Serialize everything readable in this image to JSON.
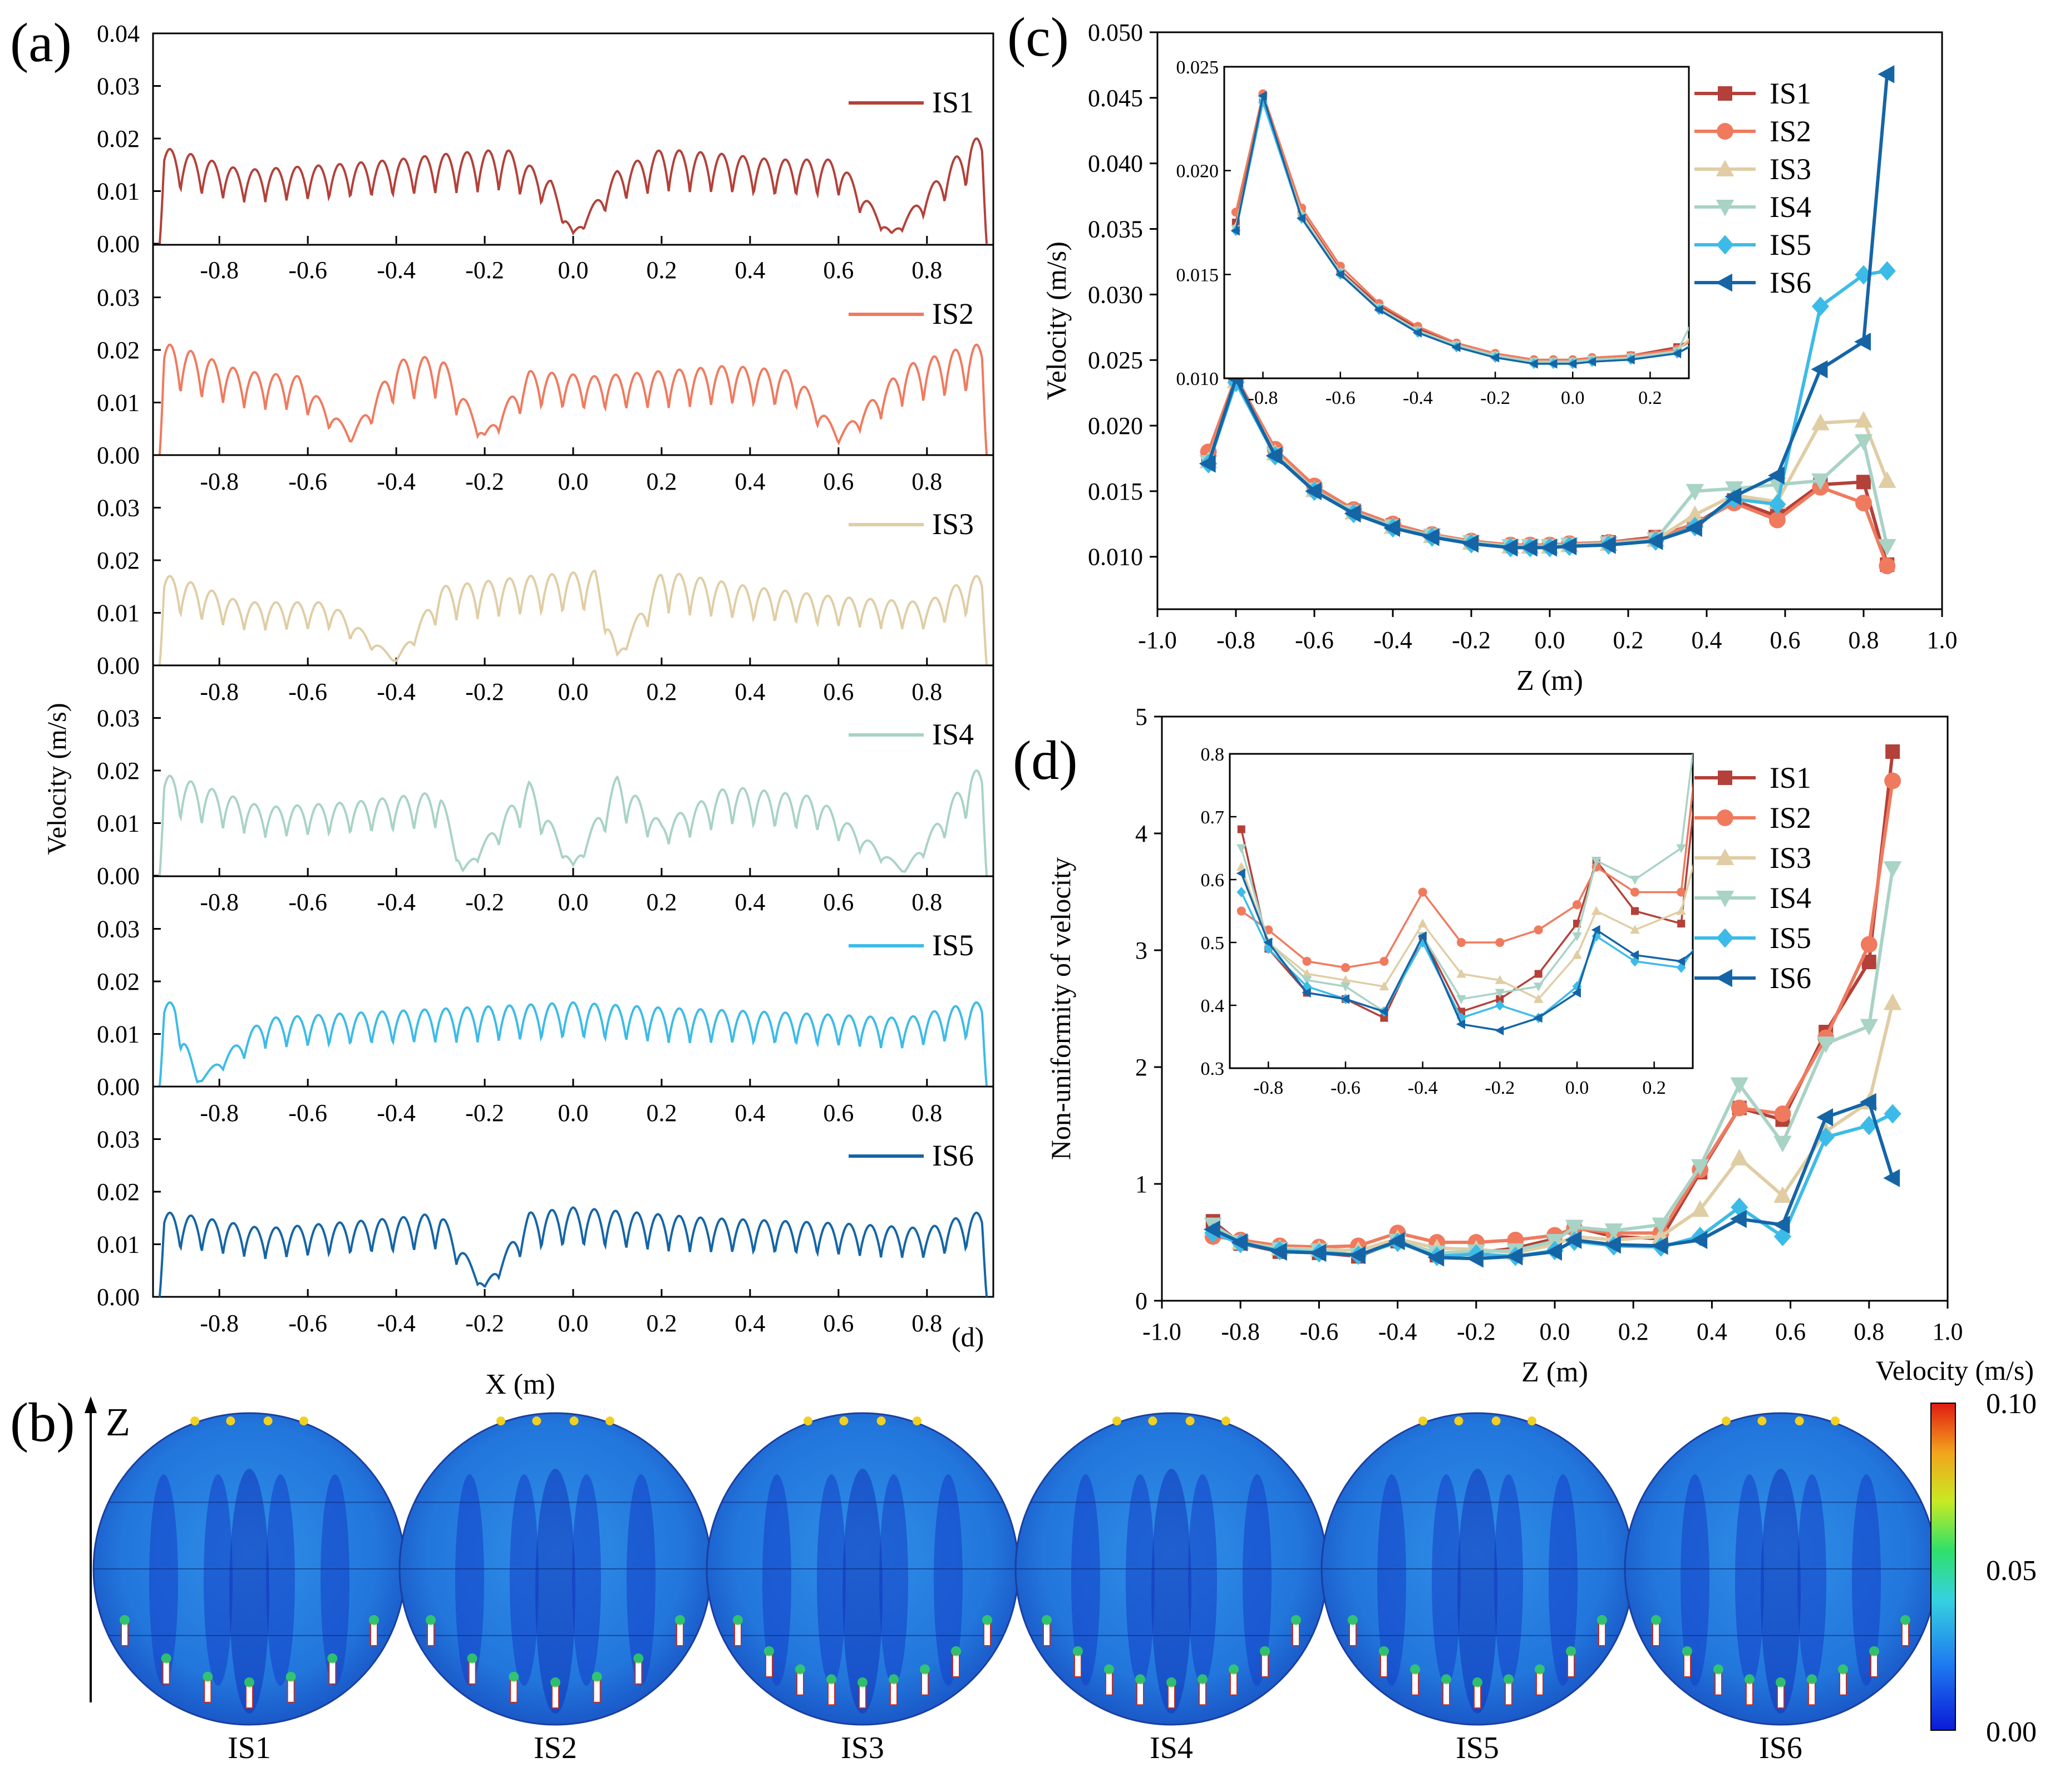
{
  "panel_labels": {
    "a": "(a)",
    "b": "(b)",
    "c": "(c)",
    "d": "(d)"
  },
  "colors": {
    "IS1": "#b3413a",
    "IS2": "#f07a5e",
    "IS3": "#e0cda4",
    "IS4": "#a8d3c5",
    "IS5": "#3dbbe8",
    "IS6": "#1565a6"
  },
  "panel_a": {
    "ylabel": "Velocity (m/s)",
    "xlabel": "X (m)",
    "stray_label": "(d)"
  },
  "panel_b": {
    "axis_label": "Z",
    "colorbar_title": "Velocity (m/s)",
    "colorbar_ticks": [
      "0.10",
      "0.05",
      "0.00"
    ],
    "case_labels": [
      "IS1",
      "IS2",
      "IS3",
      "IS4",
      "IS5",
      "IS6"
    ]
  },
  "chart_data": [
    {
      "id": "a",
      "type": "line",
      "title": "",
      "xlabel": "X (m)",
      "ylabel": "Velocity (m/s)",
      "xlim": [
        -0.95,
        0.95
      ],
      "ylim": [
        0,
        0.04
      ],
      "xticks": [
        "-0.8",
        "-0.6",
        "-0.4",
        "-0.2",
        "0.0",
        "0.2",
        "0.4",
        "0.6",
        "0.8"
      ],
      "yticks": [
        "0.00",
        "0.01",
        "0.02",
        "0.03",
        "0.04"
      ],
      "series": [
        {
          "name": "IS1",
          "peaks": [
            [
              -0.9,
              0.018
            ],
            [
              -0.75,
              0.014
            ],
            [
              -0.55,
              0.015
            ],
            [
              -0.4,
              0.016
            ],
            [
              -0.3,
              0.017
            ],
            [
              -0.15,
              0.018
            ],
            [
              -0.05,
              0.012
            ],
            [
              0.0,
              0.002
            ],
            [
              0.1,
              0.014
            ],
            [
              0.2,
              0.018
            ],
            [
              0.35,
              0.017
            ],
            [
              0.45,
              0.016
            ],
            [
              0.6,
              0.016
            ],
            [
              0.72,
              0.002
            ],
            [
              0.9,
              0.02
            ]
          ]
        },
        {
          "name": "IS2",
          "peaks": [
            [
              -0.9,
              0.021
            ],
            [
              -0.75,
              0.016
            ],
            [
              -0.62,
              0.015
            ],
            [
              -0.5,
              0.004
            ],
            [
              -0.4,
              0.018
            ],
            [
              -0.3,
              0.019
            ],
            [
              -0.2,
              0.004
            ],
            [
              -0.1,
              0.016
            ],
            [
              0.05,
              0.015
            ],
            [
              0.2,
              0.016
            ],
            [
              0.35,
              0.017
            ],
            [
              0.5,
              0.016
            ],
            [
              0.6,
              0.004
            ],
            [
              0.75,
              0.017
            ],
            [
              0.9,
              0.021
            ]
          ]
        },
        {
          "name": "IS3",
          "peaks": [
            [
              -0.9,
              0.017
            ],
            [
              -0.75,
              0.012
            ],
            [
              -0.55,
              0.012
            ],
            [
              -0.4,
              0.001
            ],
            [
              -0.3,
              0.015
            ],
            [
              -0.1,
              0.017
            ],
            [
              0.05,
              0.018
            ],
            [
              0.1,
              0.002
            ],
            [
              0.2,
              0.018
            ],
            [
              0.4,
              0.015
            ],
            [
              0.6,
              0.013
            ],
            [
              0.8,
              0.012
            ],
            [
              0.9,
              0.017
            ]
          ]
        },
        {
          "name": "IS4",
          "peaks": [
            [
              -0.9,
              0.019
            ],
            [
              -0.7,
              0.013
            ],
            [
              -0.5,
              0.014
            ],
            [
              -0.3,
              0.016
            ],
            [
              -0.25,
              0.001
            ],
            [
              -0.1,
              0.018
            ],
            [
              0.0,
              0.002
            ],
            [
              0.1,
              0.019
            ],
            [
              0.2,
              0.01
            ],
            [
              0.35,
              0.017
            ],
            [
              0.55,
              0.015
            ],
            [
              0.75,
              0.001
            ],
            [
              0.9,
              0.02
            ]
          ]
        },
        {
          "name": "IS5",
          "peaks": [
            [
              -0.9,
              0.016
            ],
            [
              -0.85,
              0.001
            ],
            [
              -0.7,
              0.013
            ],
            [
              -0.5,
              0.014
            ],
            [
              -0.25,
              0.015
            ],
            [
              0.0,
              0.016
            ],
            [
              0.2,
              0.015
            ],
            [
              0.5,
              0.014
            ],
            [
              0.75,
              0.013
            ],
            [
              0.9,
              0.016
            ]
          ]
        },
        {
          "name": "IS6",
          "peaks": [
            [
              -0.9,
              0.016
            ],
            [
              -0.7,
              0.013
            ],
            [
              -0.4,
              0.015
            ],
            [
              -0.3,
              0.016
            ],
            [
              -0.2,
              0.002
            ],
            [
              -0.1,
              0.016
            ],
            [
              0.0,
              0.017
            ],
            [
              0.3,
              0.015
            ],
            [
              0.6,
              0.014
            ],
            [
              0.8,
              0.013
            ],
            [
              0.9,
              0.016
            ]
          ]
        }
      ]
    },
    {
      "id": "c",
      "type": "line",
      "title": "",
      "xlabel": "Z (m)",
      "ylabel": "Velocity (m/s)",
      "xlim": [
        -1.0,
        1.0
      ],
      "ylim": [
        0.006,
        0.05
      ],
      "xticks": [
        "-1.0",
        "-0.8",
        "-0.6",
        "-0.4",
        "-0.2",
        "0.0",
        "0.2",
        "0.4",
        "0.6",
        "0.8",
        "1.0"
      ],
      "yticks": [
        "0.010",
        "0.015",
        "0.020",
        "0.025",
        "0.030",
        "0.035",
        "0.040",
        "0.045",
        "0.050"
      ],
      "legend": "top-right",
      "x": [
        -0.87,
        -0.8,
        -0.7,
        -0.6,
        -0.5,
        -0.4,
        -0.3,
        -0.2,
        -0.1,
        -0.05,
        0.0,
        0.05,
        0.15,
        0.27,
        0.37,
        0.47,
        0.58,
        0.69,
        0.8,
        0.86
      ],
      "series": [
        {
          "name": "IS1",
          "values": [
            0.0175,
            0.0235,
            0.018,
            0.0152,
            0.0135,
            0.0124,
            0.0116,
            0.0111,
            0.0108,
            0.0108,
            0.0108,
            0.0109,
            0.0111,
            0.0115,
            0.0125,
            0.0143,
            0.0131,
            0.0155,
            0.0157,
            0.0094
          ]
        },
        {
          "name": "IS2",
          "values": [
            0.018,
            0.0237,
            0.0182,
            0.0154,
            0.0136,
            0.0125,
            0.0117,
            0.0112,
            0.0109,
            0.0109,
            0.0109,
            0.011,
            0.0111,
            0.0114,
            0.0125,
            0.0141,
            0.0128,
            0.0153,
            0.0141,
            0.0093
          ]
        },
        {
          "name": "IS3",
          "values": [
            0.0173,
            0.0234,
            0.0179,
            0.0151,
            0.0134,
            0.0123,
            0.0116,
            0.0111,
            0.0108,
            0.0108,
            0.0108,
            0.0109,
            0.011,
            0.0113,
            0.0132,
            0.0147,
            0.0142,
            0.0202,
            0.0204,
            0.0158
          ]
        },
        {
          "name": "IS4",
          "values": [
            0.0172,
            0.0234,
            0.0178,
            0.0151,
            0.0134,
            0.0123,
            0.0116,
            0.0111,
            0.0108,
            0.0108,
            0.0108,
            0.0109,
            0.011,
            0.0113,
            0.015,
            0.0152,
            0.0155,
            0.0158,
            0.0188,
            0.0108
          ]
        },
        {
          "name": "IS5",
          "values": [
            0.0171,
            0.0233,
            0.0177,
            0.015,
            0.0133,
            0.0122,
            0.0115,
            0.011,
            0.0107,
            0.0107,
            0.0107,
            0.0108,
            0.0109,
            0.0112,
            0.0123,
            0.0144,
            0.014,
            0.0291,
            0.0315,
            0.0318
          ]
        },
        {
          "name": "IS6",
          "values": [
            0.0171,
            0.0236,
            0.0177,
            0.015,
            0.0133,
            0.0122,
            0.0115,
            0.011,
            0.0107,
            0.0107,
            0.0107,
            0.0108,
            0.0109,
            0.0112,
            0.0122,
            0.0146,
            0.0162,
            0.0243,
            0.0264,
            0.0468
          ]
        }
      ],
      "inset": {
        "xlim": [
          -0.9,
          0.3
        ],
        "ylim": [
          0.01,
          0.025
        ],
        "xticks": [
          "-0.8",
          "-0.6",
          "-0.4",
          "-0.2",
          "0.0",
          "0.2"
        ],
        "yticks": [
          "0.010",
          "0.015",
          "0.020",
          "0.025"
        ]
      }
    },
    {
      "id": "d",
      "type": "line",
      "title": "",
      "xlabel": "Z (m)",
      "ylabel": "Non-uniformity of velocity",
      "xlim": [
        -1.0,
        1.0
      ],
      "ylim": [
        0,
        5
      ],
      "xticks": [
        "-1.0",
        "-0.8",
        "-0.6",
        "-0.4",
        "-0.2",
        "0.0",
        "0.2",
        "0.4",
        "0.6",
        "0.8",
        "1.0"
      ],
      "yticks": [
        "0",
        "1",
        "2",
        "3",
        "4",
        "5"
      ],
      "legend": "top-right",
      "x": [
        -0.87,
        -0.8,
        -0.7,
        -0.6,
        -0.5,
        -0.4,
        -0.3,
        -0.2,
        -0.1,
        0.0,
        0.05,
        0.15,
        0.27,
        0.37,
        0.47,
        0.58,
        0.69,
        0.8,
        0.86
      ],
      "series": [
        {
          "name": "IS1",
          "values": [
            0.68,
            0.49,
            0.42,
            0.41,
            0.38,
            0.51,
            0.39,
            0.41,
            0.45,
            0.53,
            0.63,
            0.55,
            0.53,
            1.1,
            1.65,
            1.55,
            2.3,
            2.9,
            4.7
          ]
        },
        {
          "name": "IS2",
          "values": [
            0.55,
            0.52,
            0.47,
            0.46,
            0.47,
            0.58,
            0.5,
            0.5,
            0.52,
            0.56,
            0.62,
            0.58,
            0.58,
            1.12,
            1.65,
            1.6,
            2.25,
            3.05,
            4.45
          ]
        },
        {
          "name": "IS3",
          "values": [
            0.62,
            0.5,
            0.45,
            0.44,
            0.43,
            0.53,
            0.45,
            0.44,
            0.41,
            0.48,
            0.55,
            0.52,
            0.55,
            0.78,
            1.22,
            0.9,
            1.45,
            1.7,
            2.55
          ]
        },
        {
          "name": "IS4",
          "values": [
            0.65,
            0.5,
            0.44,
            0.43,
            0.39,
            0.51,
            0.41,
            0.42,
            0.43,
            0.51,
            0.63,
            0.6,
            0.65,
            1.15,
            1.85,
            1.35,
            2.2,
            2.35,
            3.7
          ]
        },
        {
          "name": "IS5",
          "values": [
            0.58,
            0.49,
            0.43,
            0.41,
            0.39,
            0.5,
            0.38,
            0.4,
            0.38,
            0.43,
            0.51,
            0.47,
            0.46,
            0.55,
            0.8,
            0.55,
            1.4,
            1.5,
            1.6
          ]
        },
        {
          "name": "IS6",
          "values": [
            0.61,
            0.5,
            0.42,
            0.41,
            0.39,
            0.51,
            0.37,
            0.36,
            0.38,
            0.42,
            0.52,
            0.48,
            0.47,
            0.52,
            0.7,
            0.65,
            1.57,
            1.7,
            1.05
          ]
        }
      ],
      "inset": {
        "xlim": [
          -0.9,
          0.3
        ],
        "ylim": [
          0.3,
          0.8
        ],
        "xticks": [
          "-0.8",
          "-0.6",
          "-0.4",
          "-0.2",
          "0.0",
          "0.2"
        ],
        "yticks": [
          "0.3",
          "0.4",
          "0.5",
          "0.6",
          "0.7",
          "0.8"
        ]
      }
    }
  ]
}
